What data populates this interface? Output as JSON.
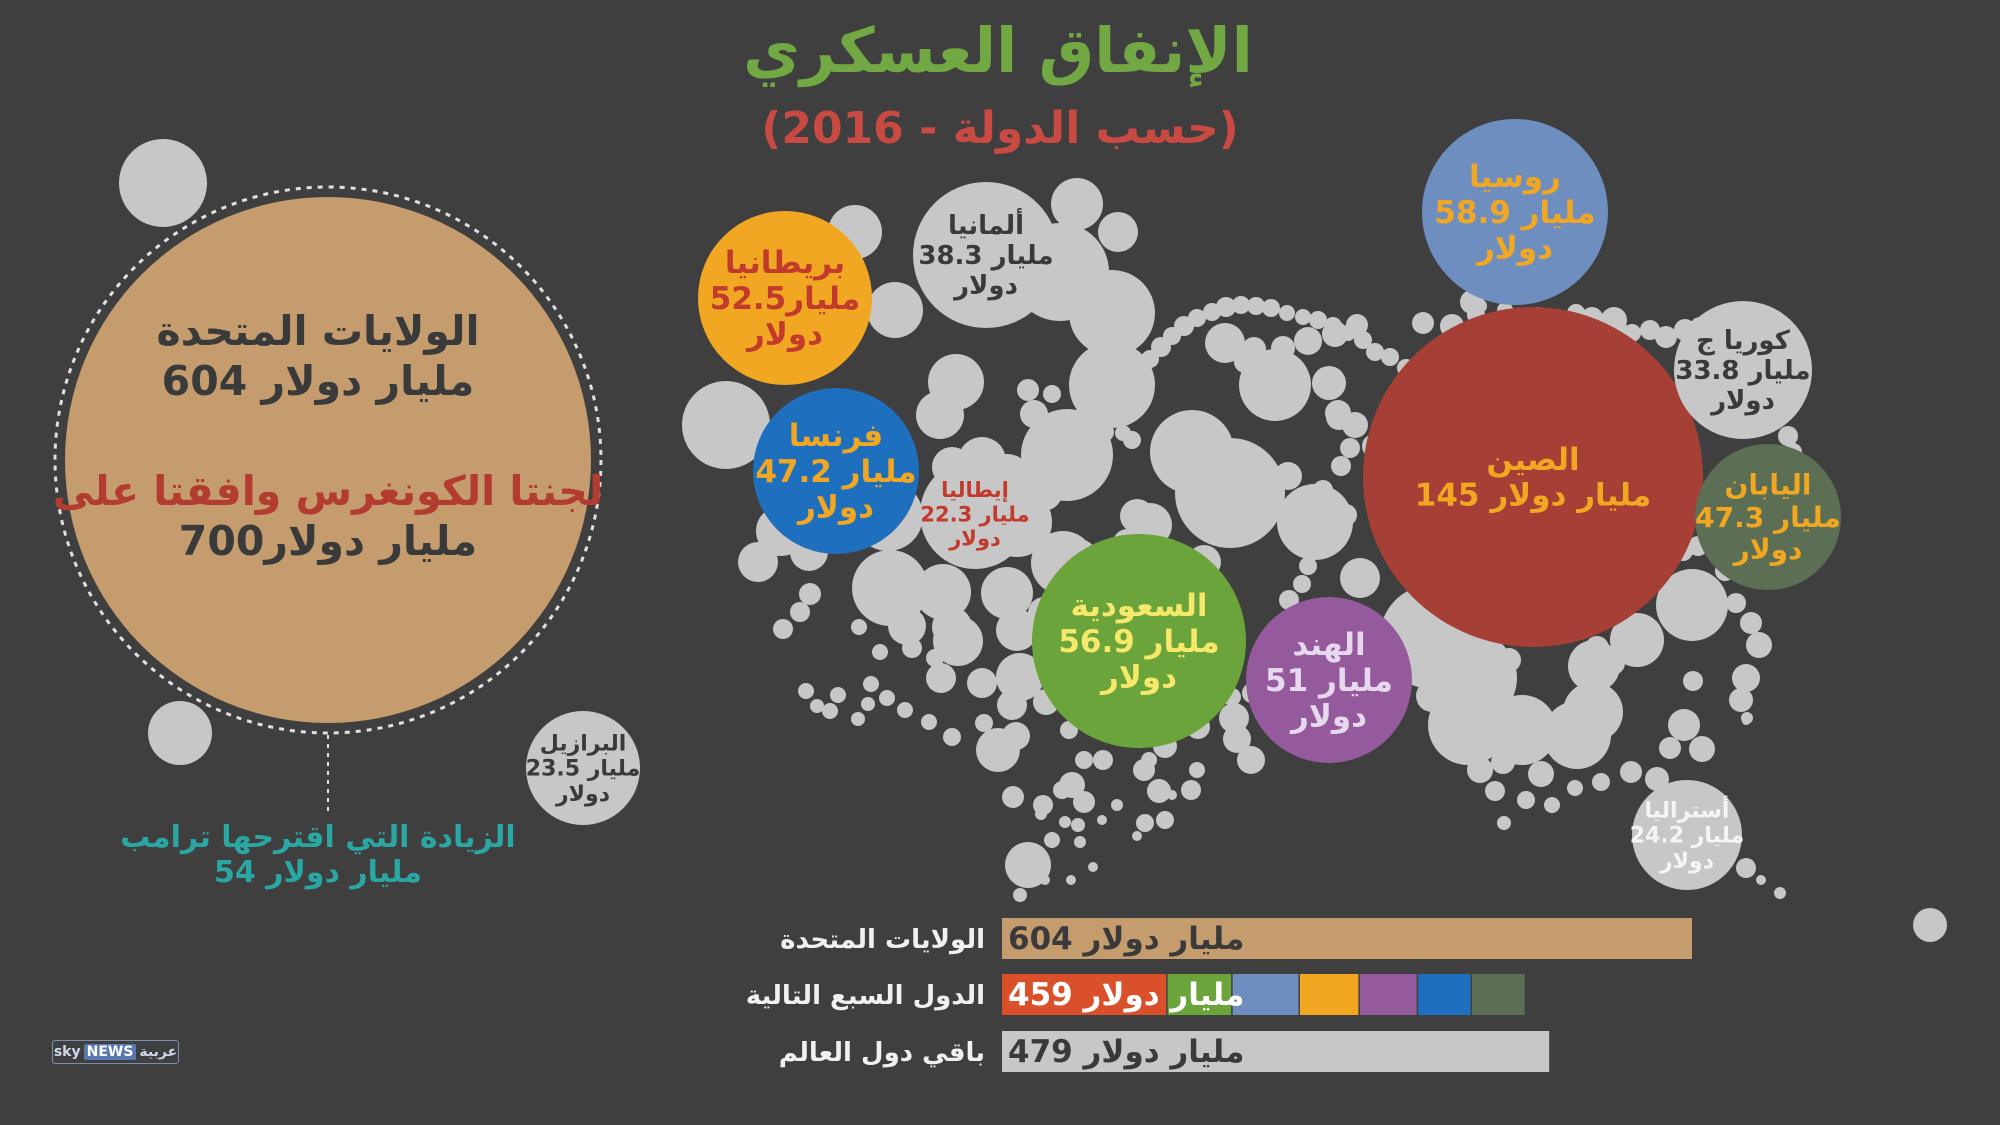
{
  "title": "الإنفاق العسكري",
  "subtitle": "(حسب الدولة - 2016)",
  "colors": {
    "background": "#3f3f3f",
    "title": "#72a843",
    "subtitle": "#c84a42",
    "filler": "#c7c7c7",
    "usa": "#c59c6d",
    "trump_note": "#2aa6a3"
  },
  "usa": {
    "name": "الولايات المتحدة",
    "value_text": "604 مليار دولار",
    "congress_line": "لجنتا الكونغرس وافقتا على",
    "congress_value": "700مليار دولار"
  },
  "trump_note": {
    "line1": "الزيادة التي اقترحها ترامب",
    "line2": "54 مليار دولار"
  },
  "chart_data": {
    "type": "bubble",
    "title": "الإنفاق العسكري",
    "subtitle": "(حسب الدولة - 2016)",
    "unit": "مليار دولار",
    "countries": [
      {
        "name": "الولايات المتحدة",
        "value": 604,
        "color": "#c59c6d"
      },
      {
        "name": "الصين",
        "value": 145,
        "color": "#a63f35"
      },
      {
        "name": "روسيا",
        "value": 58.9,
        "color": "#6f8ec0"
      },
      {
        "name": "السعودية",
        "value": 56.9,
        "color": "#6aa43a"
      },
      {
        "name": "بريطانيا",
        "value": 52.5,
        "color": "#f2a722"
      },
      {
        "name": "الهند",
        "value": 51,
        "color": "#955a9c"
      },
      {
        "name": "فرنسا",
        "value": 47.2,
        "color": "#1f6fbf"
      },
      {
        "name": "اليابان",
        "value": 47.3,
        "color": "#5c6f55"
      },
      {
        "name": "ألمانيا",
        "value": 38.3,
        "color": "#c7c7c7"
      },
      {
        "name": "كوريا ج",
        "value": 33.8,
        "color": "#c7c7c7"
      },
      {
        "name": "أستراليا",
        "value": 24.2,
        "color": "#c7c7c7"
      },
      {
        "name": "البرازيل",
        "value": 23.5,
        "color": "#c7c7c7"
      },
      {
        "name": "إيطاليا",
        "value": 22.3,
        "color": "#c7c7c7"
      }
    ],
    "bars": [
      {
        "label": "الولايات المتحدة",
        "value": 604,
        "value_text": "604 مليار دولار",
        "color": "#c59c6d"
      },
      {
        "label": "الدول السبع التالية",
        "value": 459,
        "value_text": "459 مليار دولار",
        "segments": [
          {
            "country": "الصين",
            "value": 145,
            "color": "#d9502a"
          },
          {
            "country": "السعودية",
            "value": 56.9,
            "color": "#6aa43a"
          },
          {
            "country": "روسيا",
            "value": 58.9,
            "color": "#6f8ec0"
          },
          {
            "country": "بريطانيا",
            "value": 52.5,
            "color": "#f2a722"
          },
          {
            "country": "الهند",
            "value": 51,
            "color": "#955a9c"
          },
          {
            "country": "فرنسا",
            "value": 47.2,
            "color": "#1f6fbf"
          },
          {
            "country": "اليابان",
            "value": 47.3,
            "color": "#5c6f55"
          }
        ]
      },
      {
        "label": "باقي دول العالم",
        "value": 479,
        "value_text": "479 مليار دولار",
        "color": "#c7c7c7"
      }
    ]
  },
  "logo": {
    "sky": "sky",
    "news": "NEWS",
    "arabic": "عربية"
  }
}
